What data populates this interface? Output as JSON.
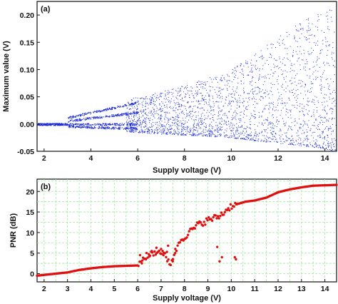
{
  "chart_data": [
    {
      "panel": "(a)",
      "type": "scatter",
      "title": "",
      "xlabel": "Supply voltage (V)",
      "ylabel": "Maximum value (V)",
      "xlim": [
        1.7,
        14.5
      ],
      "ylim": [
        -0.05,
        0.225
      ],
      "xticks": [
        2,
        4,
        6,
        8,
        10,
        12,
        14
      ],
      "yticks": [
        -0.05,
        0.0,
        0.05,
        0.1,
        0.15,
        0.2
      ],
      "ytick_labels": [
        "-0.05",
        "0.00",
        "0.05",
        "0.10",
        "0.15",
        "0.20"
      ],
      "grid": false,
      "marker_color": "#1f2fd6",
      "description_of_data": "Bifurcation-style scatter of local maxima; single branch near 0 for 1.7–3 V, splitting into multiple branches 3–6 V, broadening chaotic band above ~6 V",
      "envelope": {
        "x": [
          1.7,
          3.0,
          4.0,
          5.0,
          6.0,
          7.0,
          8.0,
          9.0,
          10.0,
          11.0,
          12.0,
          13.0,
          14.0,
          14.5
        ],
        "upper": [
          0.002,
          0.012,
          0.025,
          0.04,
          0.05,
          0.06,
          0.072,
          0.085,
          0.1,
          0.13,
          0.16,
          0.19,
          0.21,
          0.22
        ],
        "lower": [
          -0.002,
          -0.008,
          -0.01,
          -0.012,
          -0.015,
          -0.018,
          -0.02,
          -0.022,
          -0.025,
          -0.03,
          -0.035,
          -0.04,
          -0.045,
          -0.05
        ]
      },
      "branches": [
        {
          "x": [
            3.0,
            6.0
          ],
          "y": [
            0.0,
            0.0
          ]
        },
        {
          "x": [
            3.0,
            6.0
          ],
          "y": [
            0.012,
            0.04
          ]
        },
        {
          "x": [
            3.0,
            6.0
          ],
          "y": [
            0.006,
            0.022
          ]
        },
        {
          "x": [
            3.0,
            6.0
          ],
          "y": [
            -0.004,
            -0.008
          ]
        }
      ]
    },
    {
      "panel": "(b)",
      "type": "scatter",
      "title": "",
      "xlabel": "Supply voltage (V)",
      "ylabel": "PNR (dB)",
      "xlim": [
        1.7,
        14.5
      ],
      "ylim": [
        -2,
        23
      ],
      "xticks": [
        2,
        3,
        4,
        5,
        6,
        7,
        8,
        9,
        10,
        11,
        12,
        13,
        14
      ],
      "yticks": [
        0,
        5,
        10,
        15,
        20
      ],
      "grid": true,
      "marker_color": "#e01010",
      "main_curve": {
        "x": [
          1.7,
          2.0,
          2.5,
          3.0,
          3.5,
          4.0,
          4.5,
          5.0,
          5.5,
          6.0,
          6.3,
          6.6,
          7.0,
          7.4,
          7.8,
          8.2,
          8.6,
          9.0,
          9.5,
          9.8,
          10.0,
          10.3,
          10.6,
          11.0,
          11.5,
          12.0,
          12.5,
          13.0,
          13.5,
          14.0,
          14.5
        ],
        "y": [
          -0.5,
          -0.3,
          0.0,
          0.3,
          0.9,
          1.3,
          1.6,
          1.8,
          1.9,
          2.0,
          4.0,
          5.0,
          5.5,
          2.5,
          8.0,
          10.0,
          12.0,
          13.0,
          14.0,
          15.5,
          16.5,
          17.0,
          17.5,
          17.8,
          18.5,
          19.8,
          20.5,
          21.0,
          21.4,
          21.5,
          21.6
        ]
      },
      "scatter_points": {
        "x": [
          6.1,
          6.2,
          6.35,
          6.5,
          6.6,
          6.8,
          7.0,
          7.1,
          7.25,
          7.3,
          7.5,
          7.6,
          9.4,
          9.5,
          9.6,
          10.15,
          10.2,
          10.25
        ],
        "y": [
          4.5,
          3.2,
          3.5,
          4.2,
          5.5,
          6.3,
          6.0,
          4.5,
          5.3,
          6.8,
          3.0,
          5.0,
          6.5,
          3.0,
          4.0,
          4.0,
          3.5,
          17.0
        ]
      }
    }
  ]
}
